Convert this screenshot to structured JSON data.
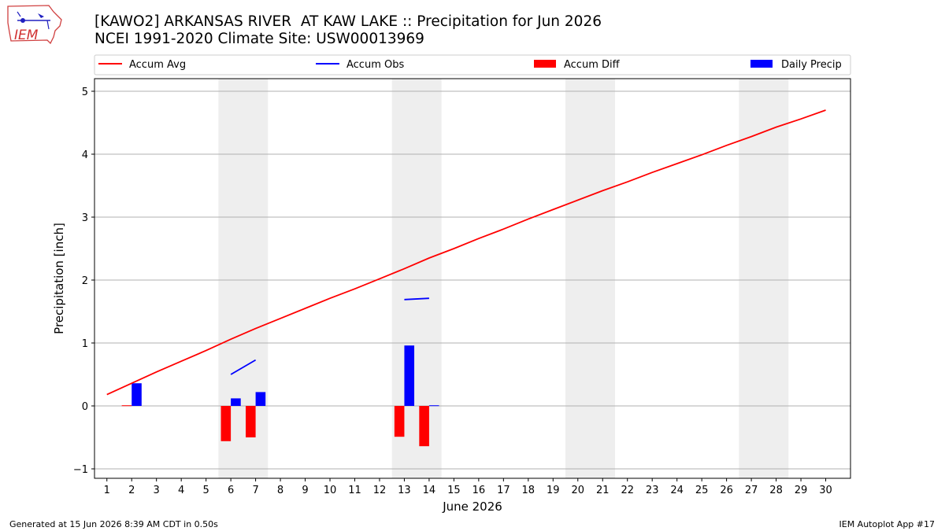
{
  "header": {
    "title_line1": "[KAWO2] ARKANSAS RIVER  AT KAW LAKE :: Precipitation for Jun 2026",
    "title_line2": "NCEI 1991-2020 Climate Site: USW00013969",
    "logo_text": "IEM"
  },
  "footer": {
    "generated": "Generated at 15 Jun 2026 8:39 AM CDT in 0.50s",
    "app": "IEM Autoplot App #17"
  },
  "colors": {
    "accum_avg": "#ff0000",
    "accum_obs": "#0000ff",
    "accum_diff": "#ff0000",
    "daily_precip": "#0000ff",
    "weekend_shade": "#eeeeee",
    "grid": "#b0b0b0"
  },
  "chart_data": {
    "type": "bar",
    "xlabel": "June 2026",
    "ylabel": "Precipitation [inch]",
    "ylim": [
      -1.15,
      5.2
    ],
    "xlim": [
      0.5,
      31.0
    ],
    "yticks": [
      -1,
      0,
      1,
      2,
      3,
      4,
      5
    ],
    "x": [
      1,
      2,
      3,
      4,
      5,
      6,
      7,
      8,
      9,
      10,
      11,
      12,
      13,
      14,
      15,
      16,
      17,
      18,
      19,
      20,
      21,
      22,
      23,
      24,
      25,
      26,
      27,
      28,
      29,
      30
    ],
    "weekend_spans": [
      [
        5.5,
        7.5
      ],
      [
        12.5,
        14.5
      ],
      [
        19.5,
        21.5
      ],
      [
        26.5,
        28.5
      ]
    ],
    "grid": "y",
    "legend_placement": "top",
    "legend": [
      "Accum Avg",
      "Accum Obs",
      "Accum Diff",
      "Daily Precip"
    ],
    "series": [
      {
        "name": "Accum Avg",
        "type": "line",
        "x": [
          1,
          2,
          3,
          4,
          5,
          6,
          7,
          8,
          9,
          10,
          11,
          12,
          13,
          14,
          15,
          16,
          17,
          18,
          19,
          20,
          21,
          22,
          23,
          24,
          25,
          26,
          27,
          28,
          29,
          30
        ],
        "values": [
          0.18,
          0.36,
          0.54,
          0.71,
          0.88,
          1.06,
          1.23,
          1.39,
          1.55,
          1.71,
          1.86,
          2.02,
          2.18,
          2.35,
          2.5,
          2.66,
          2.81,
          2.97,
          3.12,
          3.27,
          3.42,
          3.56,
          3.71,
          3.85,
          3.99,
          4.14,
          4.28,
          4.43,
          4.56,
          4.7
        ]
      },
      {
        "name": "Accum Obs",
        "type": "line",
        "segments": [
          {
            "x": [
              6,
              7
            ],
            "values": [
              0.5,
              0.73
            ]
          },
          {
            "x": [
              13,
              14
            ],
            "values": [
              1.69,
              1.71
            ]
          }
        ]
      },
      {
        "name": "Accum Diff",
        "type": "bar",
        "x": [
          2,
          6,
          7,
          13,
          14
        ],
        "values": [
          0.01,
          -0.56,
          -0.5,
          -0.49,
          -0.64
        ]
      },
      {
        "name": "Daily Precip",
        "type": "bar",
        "x": [
          2,
          6,
          7,
          13,
          14
        ],
        "values": [
          0.36,
          0.12,
          0.22,
          0.96,
          0.01
        ]
      }
    ]
  }
}
